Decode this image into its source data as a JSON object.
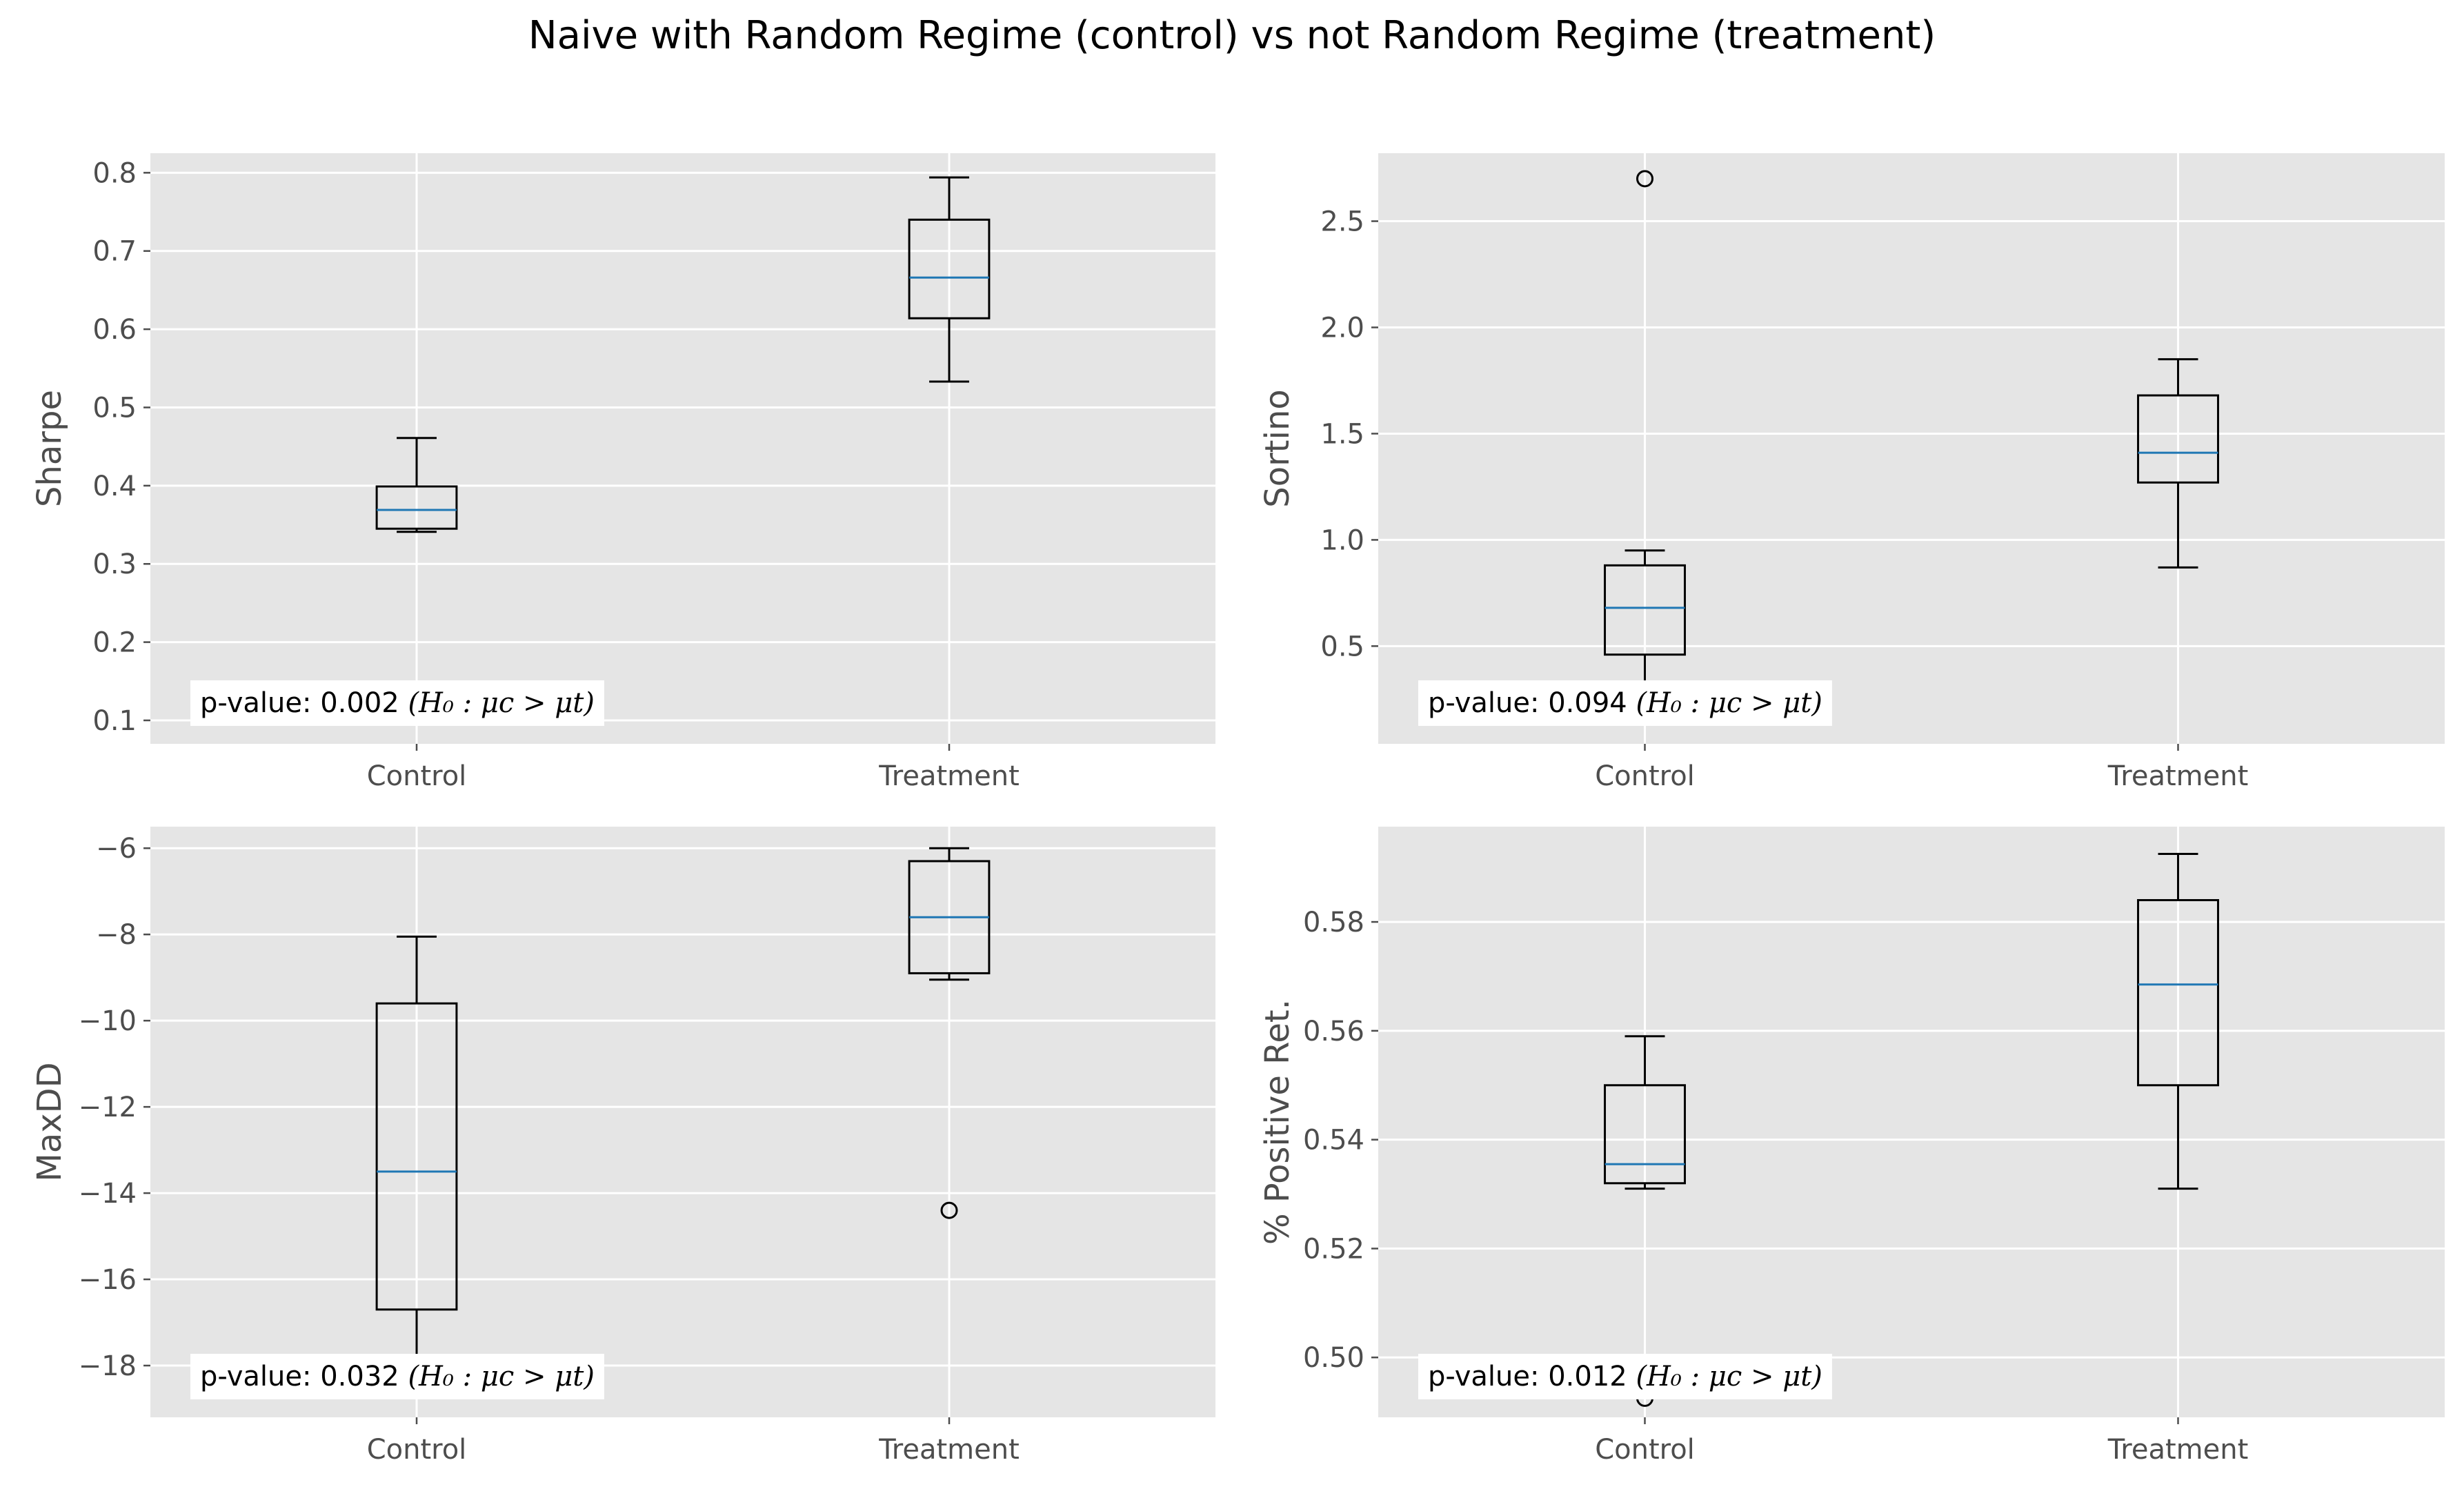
{
  "title": "Naive with Random Regime (control) vs not Random Regime (treatment)",
  "colors": {
    "panel_bg": "#e5e5e5",
    "grid": "#ffffff",
    "box": "#000000",
    "median": "#1f77b4",
    "tick_text": "#4d4d4d"
  },
  "chart_data": [
    {
      "type": "box",
      "ylabel": "Sharpe",
      "categories": [
        "Control",
        "Treatment"
      ],
      "yticks": [
        "0.1",
        "0.2",
        "0.3",
        "0.4",
        "0.5",
        "0.6",
        "0.7",
        "0.8"
      ],
      "ylim": [
        0.07,
        0.825
      ],
      "grid": true,
      "boxes": [
        {
          "name": "Control",
          "whislo": 0.341,
          "q1": 0.345,
          "med": 0.369,
          "q3": 0.399,
          "whishi": 0.461,
          "fliers": [
            0.104
          ]
        },
        {
          "name": "Treatment",
          "whislo": 0.533,
          "q1": 0.614,
          "med": 0.666,
          "q3": 0.74,
          "whishi": 0.794,
          "fliers": []
        }
      ],
      "annotation": {
        "text": "p-value: 0.002",
        "hypothesis": "(H₀ : μc > μt)"
      }
    },
    {
      "type": "box",
      "ylabel": "Sortino",
      "categories": [
        "Control",
        "Treatment"
      ],
      "yticks": [
        "0.5",
        "1.0",
        "1.5",
        "2.0",
        "2.5"
      ],
      "ylim": [
        0.04,
        2.82
      ],
      "grid": true,
      "boxes": [
        {
          "name": "Control",
          "whislo": 0.18,
          "q1": 0.46,
          "med": 0.68,
          "q3": 0.88,
          "whishi": 0.95,
          "fliers": [
            2.7
          ]
        },
        {
          "name": "Treatment",
          "whislo": 0.87,
          "q1": 1.27,
          "med": 1.41,
          "q3": 1.68,
          "whishi": 1.85,
          "fliers": []
        }
      ],
      "annotation": {
        "text": "p-value: 0.094",
        "hypothesis": "(H₀ : μc > μt)"
      }
    },
    {
      "type": "box",
      "ylabel": "MaxDD",
      "categories": [
        "Control",
        "Treatment"
      ],
      "yticks": [
        "−6",
        "−8",
        "−10",
        "−12",
        "−14",
        "−16",
        "−18"
      ],
      "ylim": [
        -19.2,
        -5.5
      ],
      "grid": true,
      "boxes": [
        {
          "name": "Control",
          "whislo": -18.6,
          "q1": -16.7,
          "med": -13.5,
          "q3": -9.6,
          "whishi": -8.05,
          "fliers": []
        },
        {
          "name": "Treatment",
          "whislo": -9.05,
          "q1": -8.9,
          "med": -7.6,
          "q3": -6.3,
          "whishi": -6.0,
          "fliers": [
            -14.4
          ]
        }
      ],
      "annotation": {
        "text": "p-value: 0.032",
        "hypothesis": "(H₀ : μc > μt)"
      }
    },
    {
      "type": "box",
      "ylabel": "% Positive Ret.",
      "categories": [
        "Control",
        "Treatment"
      ],
      "yticks": [
        "0.50",
        "0.52",
        "0.54",
        "0.56",
        "0.58"
      ],
      "ylim": [
        0.489,
        0.5975
      ],
      "grid": true,
      "boxes": [
        {
          "name": "Control",
          "whislo": 0.531,
          "q1": 0.532,
          "med": 0.5355,
          "q3": 0.55,
          "whishi": 0.559,
          "fliers": [
            0.4925
          ]
        },
        {
          "name": "Treatment",
          "whislo": 0.531,
          "q1": 0.55,
          "med": 0.5685,
          "q3": 0.584,
          "whishi": 0.5925,
          "fliers": []
        }
      ],
      "annotation": {
        "text": "p-value: 0.012",
        "hypothesis": "(H₀ : μc > μt)"
      }
    }
  ]
}
